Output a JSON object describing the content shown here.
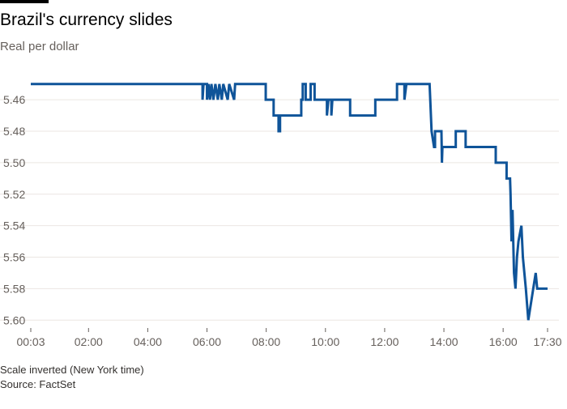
{
  "chart_data": {
    "type": "line",
    "title": "Brazil's currency slides",
    "subtitle": "Real per dollar",
    "notes": [
      "Scale inverted (New York time)",
      "Source: FactSet"
    ],
    "y_inverted": true,
    "grid": true,
    "ylim": [
      5.445,
      5.605
    ],
    "yticks": [
      {
        "value": 5.46,
        "label": "5.46"
      },
      {
        "value": 5.48,
        "label": "5.48"
      },
      {
        "value": 5.5,
        "label": "5.50"
      },
      {
        "value": 5.52,
        "label": "5.52"
      },
      {
        "value": 5.54,
        "label": "5.54"
      },
      {
        "value": 5.56,
        "label": "5.56"
      },
      {
        "value": 5.58,
        "label": "5.58"
      },
      {
        "value": 5.6,
        "label": "5.60"
      }
    ],
    "xlim": [
      "00:03",
      "17:30"
    ],
    "xticks": [
      "00:03",
      "02:00",
      "04:00",
      "06:00",
      "08:00",
      "10:00",
      "12:00",
      "14:00",
      "16:00",
      "17:30"
    ],
    "x": [
      "00:03",
      "05:51",
      "05:51",
      "05:53",
      "06:00",
      "06:00",
      "06:03",
      "06:06",
      "06:09",
      "06:13",
      "06:17",
      "06:22",
      "06:25",
      "06:30",
      "06:33",
      "06:42",
      "06:45",
      "06:55",
      "06:57",
      "07:59",
      "07:59",
      "08:15",
      "08:15",
      "08:25",
      "08:25",
      "08:28",
      "08:28",
      "09:11",
      "09:11",
      "09:14",
      "09:14",
      "09:20",
      "09:20",
      "09:30",
      "09:30",
      "09:38",
      "09:38",
      "10:03",
      "10:03",
      "10:06",
      "10:12",
      "10:12",
      "10:14",
      "10:50",
      "10:50",
      "11:41",
      "11:41",
      "12:25",
      "12:25",
      "12:40",
      "12:40",
      "12:44",
      "13:31",
      "13:35",
      "13:40",
      "13:42",
      "13:42",
      "13:55",
      "13:56",
      "13:57",
      "14:24",
      "14:24",
      "14:44",
      "14:44",
      "15:45",
      "15:45",
      "16:07",
      "16:07",
      "16:14",
      "16:15",
      "16:17",
      "16:19",
      "16:22",
      "16:25",
      "16:28",
      "16:31",
      "16:37",
      "16:40",
      "16:46",
      "16:51",
      "16:56",
      "17:01",
      "17:06",
      "17:09",
      "17:30"
    ],
    "series": [
      {
        "name": "Real per dollar",
        "color": "#0f5499",
        "values": [
          5.45,
          5.45,
          5.46,
          5.45,
          5.45,
          5.46,
          5.45,
          5.46,
          5.45,
          5.46,
          5.45,
          5.46,
          5.45,
          5.46,
          5.45,
          5.46,
          5.45,
          5.46,
          5.45,
          5.45,
          5.46,
          5.46,
          5.47,
          5.47,
          5.48,
          5.48,
          5.47,
          5.47,
          5.46,
          5.46,
          5.45,
          5.45,
          5.46,
          5.46,
          5.45,
          5.45,
          5.46,
          5.46,
          5.47,
          5.46,
          5.46,
          5.47,
          5.46,
          5.46,
          5.47,
          5.47,
          5.46,
          5.46,
          5.45,
          5.45,
          5.46,
          5.45,
          5.45,
          5.48,
          5.49,
          5.49,
          5.48,
          5.48,
          5.5,
          5.49,
          5.49,
          5.48,
          5.48,
          5.49,
          5.49,
          5.5,
          5.5,
          5.51,
          5.51,
          5.52,
          5.55,
          5.53,
          5.57,
          5.58,
          5.56,
          5.55,
          5.54,
          5.56,
          5.58,
          5.6,
          5.59,
          5.58,
          5.57,
          5.58,
          5.58
        ]
      }
    ]
  }
}
